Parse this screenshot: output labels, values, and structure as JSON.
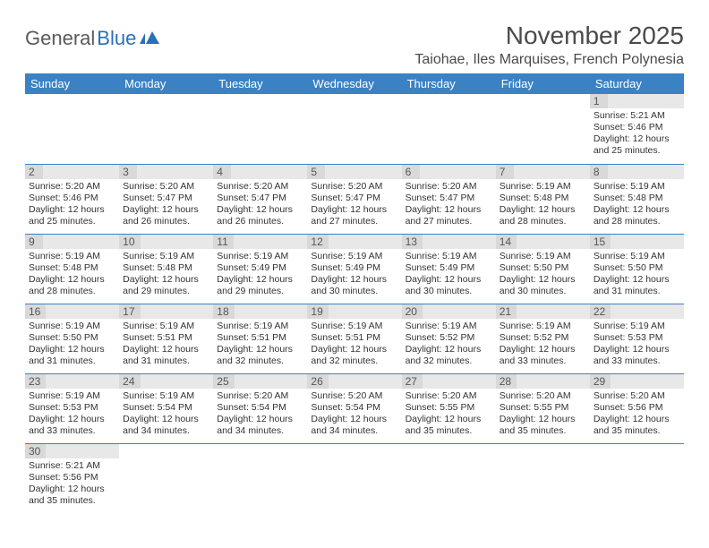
{
  "brand": {
    "part1": "General",
    "part2": "Blue"
  },
  "title": "November 2025",
  "location": "Taiohae, Iles Marquises, French Polynesia",
  "colors": {
    "header_bg": "#3b82c4",
    "header_text": "#ffffff",
    "daynum_bg": "#d9d9d9",
    "daynum_row_bg": "#e8e8e8",
    "border": "#3b82c4",
    "text": "#333333",
    "title_text": "#4a4a4a",
    "logo_gray": "#5a5a5a",
    "logo_blue": "#2a70b8"
  },
  "weekdays": [
    "Sunday",
    "Monday",
    "Tuesday",
    "Wednesday",
    "Thursday",
    "Friday",
    "Saturday"
  ],
  "weeks": [
    [
      null,
      null,
      null,
      null,
      null,
      null,
      {
        "n": "1",
        "sunrise": "5:21 AM",
        "sunset": "5:46 PM",
        "daylight": "12 hours and 25 minutes."
      }
    ],
    [
      {
        "n": "2",
        "sunrise": "5:20 AM",
        "sunset": "5:46 PM",
        "daylight": "12 hours and 25 minutes."
      },
      {
        "n": "3",
        "sunrise": "5:20 AM",
        "sunset": "5:47 PM",
        "daylight": "12 hours and 26 minutes."
      },
      {
        "n": "4",
        "sunrise": "5:20 AM",
        "sunset": "5:47 PM",
        "daylight": "12 hours and 26 minutes."
      },
      {
        "n": "5",
        "sunrise": "5:20 AM",
        "sunset": "5:47 PM",
        "daylight": "12 hours and 27 minutes."
      },
      {
        "n": "6",
        "sunrise": "5:20 AM",
        "sunset": "5:47 PM",
        "daylight": "12 hours and 27 minutes."
      },
      {
        "n": "7",
        "sunrise": "5:19 AM",
        "sunset": "5:48 PM",
        "daylight": "12 hours and 28 minutes."
      },
      {
        "n": "8",
        "sunrise": "5:19 AM",
        "sunset": "5:48 PM",
        "daylight": "12 hours and 28 minutes."
      }
    ],
    [
      {
        "n": "9",
        "sunrise": "5:19 AM",
        "sunset": "5:48 PM",
        "daylight": "12 hours and 28 minutes."
      },
      {
        "n": "10",
        "sunrise": "5:19 AM",
        "sunset": "5:48 PM",
        "daylight": "12 hours and 29 minutes."
      },
      {
        "n": "11",
        "sunrise": "5:19 AM",
        "sunset": "5:49 PM",
        "daylight": "12 hours and 29 minutes."
      },
      {
        "n": "12",
        "sunrise": "5:19 AM",
        "sunset": "5:49 PM",
        "daylight": "12 hours and 30 minutes."
      },
      {
        "n": "13",
        "sunrise": "5:19 AM",
        "sunset": "5:49 PM",
        "daylight": "12 hours and 30 minutes."
      },
      {
        "n": "14",
        "sunrise": "5:19 AM",
        "sunset": "5:50 PM",
        "daylight": "12 hours and 30 minutes."
      },
      {
        "n": "15",
        "sunrise": "5:19 AM",
        "sunset": "5:50 PM",
        "daylight": "12 hours and 31 minutes."
      }
    ],
    [
      {
        "n": "16",
        "sunrise": "5:19 AM",
        "sunset": "5:50 PM",
        "daylight": "12 hours and 31 minutes."
      },
      {
        "n": "17",
        "sunrise": "5:19 AM",
        "sunset": "5:51 PM",
        "daylight": "12 hours and 31 minutes."
      },
      {
        "n": "18",
        "sunrise": "5:19 AM",
        "sunset": "5:51 PM",
        "daylight": "12 hours and 32 minutes."
      },
      {
        "n": "19",
        "sunrise": "5:19 AM",
        "sunset": "5:51 PM",
        "daylight": "12 hours and 32 minutes."
      },
      {
        "n": "20",
        "sunrise": "5:19 AM",
        "sunset": "5:52 PM",
        "daylight": "12 hours and 32 minutes."
      },
      {
        "n": "21",
        "sunrise": "5:19 AM",
        "sunset": "5:52 PM",
        "daylight": "12 hours and 33 minutes."
      },
      {
        "n": "22",
        "sunrise": "5:19 AM",
        "sunset": "5:53 PM",
        "daylight": "12 hours and 33 minutes."
      }
    ],
    [
      {
        "n": "23",
        "sunrise": "5:19 AM",
        "sunset": "5:53 PM",
        "daylight": "12 hours and 33 minutes."
      },
      {
        "n": "24",
        "sunrise": "5:19 AM",
        "sunset": "5:54 PM",
        "daylight": "12 hours and 34 minutes."
      },
      {
        "n": "25",
        "sunrise": "5:20 AM",
        "sunset": "5:54 PM",
        "daylight": "12 hours and 34 minutes."
      },
      {
        "n": "26",
        "sunrise": "5:20 AM",
        "sunset": "5:54 PM",
        "daylight": "12 hours and 34 minutes."
      },
      {
        "n": "27",
        "sunrise": "5:20 AM",
        "sunset": "5:55 PM",
        "daylight": "12 hours and 35 minutes."
      },
      {
        "n": "28",
        "sunrise": "5:20 AM",
        "sunset": "5:55 PM",
        "daylight": "12 hours and 35 minutes."
      },
      {
        "n": "29",
        "sunrise": "5:20 AM",
        "sunset": "5:56 PM",
        "daylight": "12 hours and 35 minutes."
      }
    ],
    [
      {
        "n": "30",
        "sunrise": "5:21 AM",
        "sunset": "5:56 PM",
        "daylight": "12 hours and 35 minutes."
      },
      null,
      null,
      null,
      null,
      null,
      null
    ]
  ],
  "labels": {
    "sunrise": "Sunrise:",
    "sunset": "Sunset:",
    "daylight": "Daylight:"
  }
}
